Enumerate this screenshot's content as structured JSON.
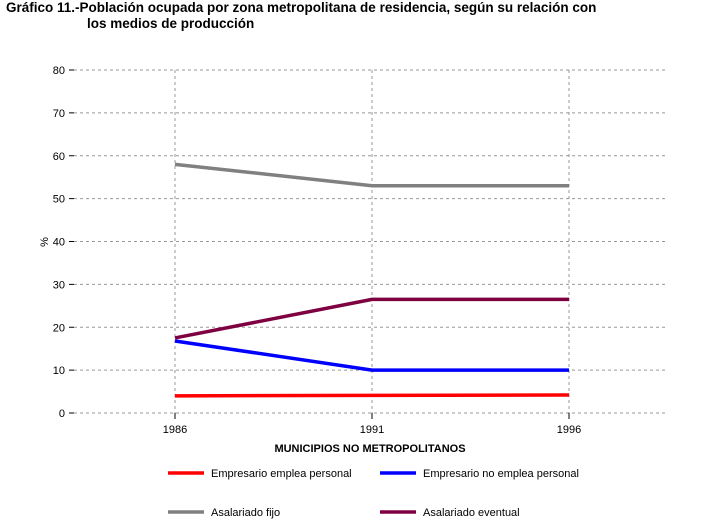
{
  "chart_data": {
    "type": "line",
    "title_line1": "Gráfico 11.-Población ocupada por zona metropolitana de residencia, según su relación con",
    "title_line2": "los medios de producción",
    "xlabel": "MUNICIPIOS NO METROPOLITANOS",
    "ylabel": "%",
    "x": [
      "1986",
      "1991",
      "1996"
    ],
    "ylim": [
      0,
      80
    ],
    "yticks": [
      0,
      10,
      20,
      30,
      40,
      50,
      60,
      70,
      80
    ],
    "grid": true,
    "legend_position": "bottom",
    "series": [
      {
        "name": "Empresario emplea personal",
        "color": "#ff0000",
        "values": [
          4,
          4.1,
          4.2
        ]
      },
      {
        "name": "Empresario no emplea personal",
        "color": "#0000ff",
        "values": [
          16.8,
          10,
          10
        ]
      },
      {
        "name": "Asalariado fijo",
        "color": "#808080",
        "values": [
          58,
          53,
          53
        ]
      },
      {
        "name": "Asalariado eventual",
        "color": "#7f0040",
        "values": [
          17.5,
          26.5,
          26.5
        ]
      }
    ]
  }
}
